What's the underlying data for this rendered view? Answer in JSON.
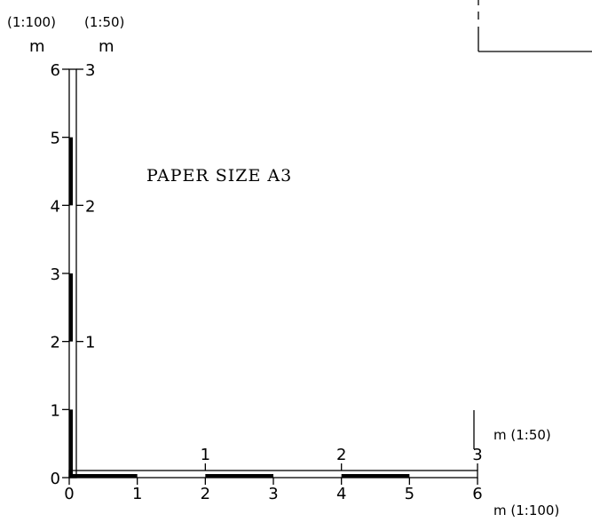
{
  "colors": {
    "background": "#ffffff",
    "ink": "#000000"
  },
  "header": {
    "scale_100": "(1:100)",
    "scale_50": "(1:50)",
    "unit_100": "m",
    "unit_50": "m"
  },
  "paper_size_label": "PAPER SIZE A3",
  "vertical_scale": {
    "ticks_100": [
      {
        "value": 0,
        "label": "0"
      },
      {
        "value": 1,
        "label": "1"
      },
      {
        "value": 2,
        "label": "2"
      },
      {
        "value": 3,
        "label": "3"
      },
      {
        "value": 4,
        "label": "4"
      },
      {
        "value": 5,
        "label": "5"
      },
      {
        "value": 6,
        "label": "6"
      }
    ],
    "ticks_50": [
      {
        "value": 1,
        "label": "1"
      },
      {
        "value": 2,
        "label": "2"
      },
      {
        "value": 3,
        "label": "3"
      }
    ],
    "filled_segments_100": [
      [
        0,
        1
      ],
      [
        2,
        3
      ],
      [
        4,
        5
      ]
    ]
  },
  "horizontal_scale": {
    "ticks_100": [
      {
        "value": 0,
        "label": "0"
      },
      {
        "value": 1,
        "label": "1"
      },
      {
        "value": 2,
        "label": "2"
      },
      {
        "value": 3,
        "label": "3"
      },
      {
        "value": 4,
        "label": "4"
      },
      {
        "value": 5,
        "label": "5"
      },
      {
        "value": 6,
        "label": "6"
      }
    ],
    "ticks_50": [
      {
        "value": 1,
        "label": "1"
      },
      {
        "value": 2,
        "label": "2"
      },
      {
        "value": 3,
        "label": "3"
      }
    ],
    "filled_segments_100": [
      [
        0,
        1
      ],
      [
        2,
        3
      ],
      [
        4,
        5
      ]
    ],
    "unit_50_label": "m (1:50)",
    "unit_100_label": "m (1:100)"
  }
}
